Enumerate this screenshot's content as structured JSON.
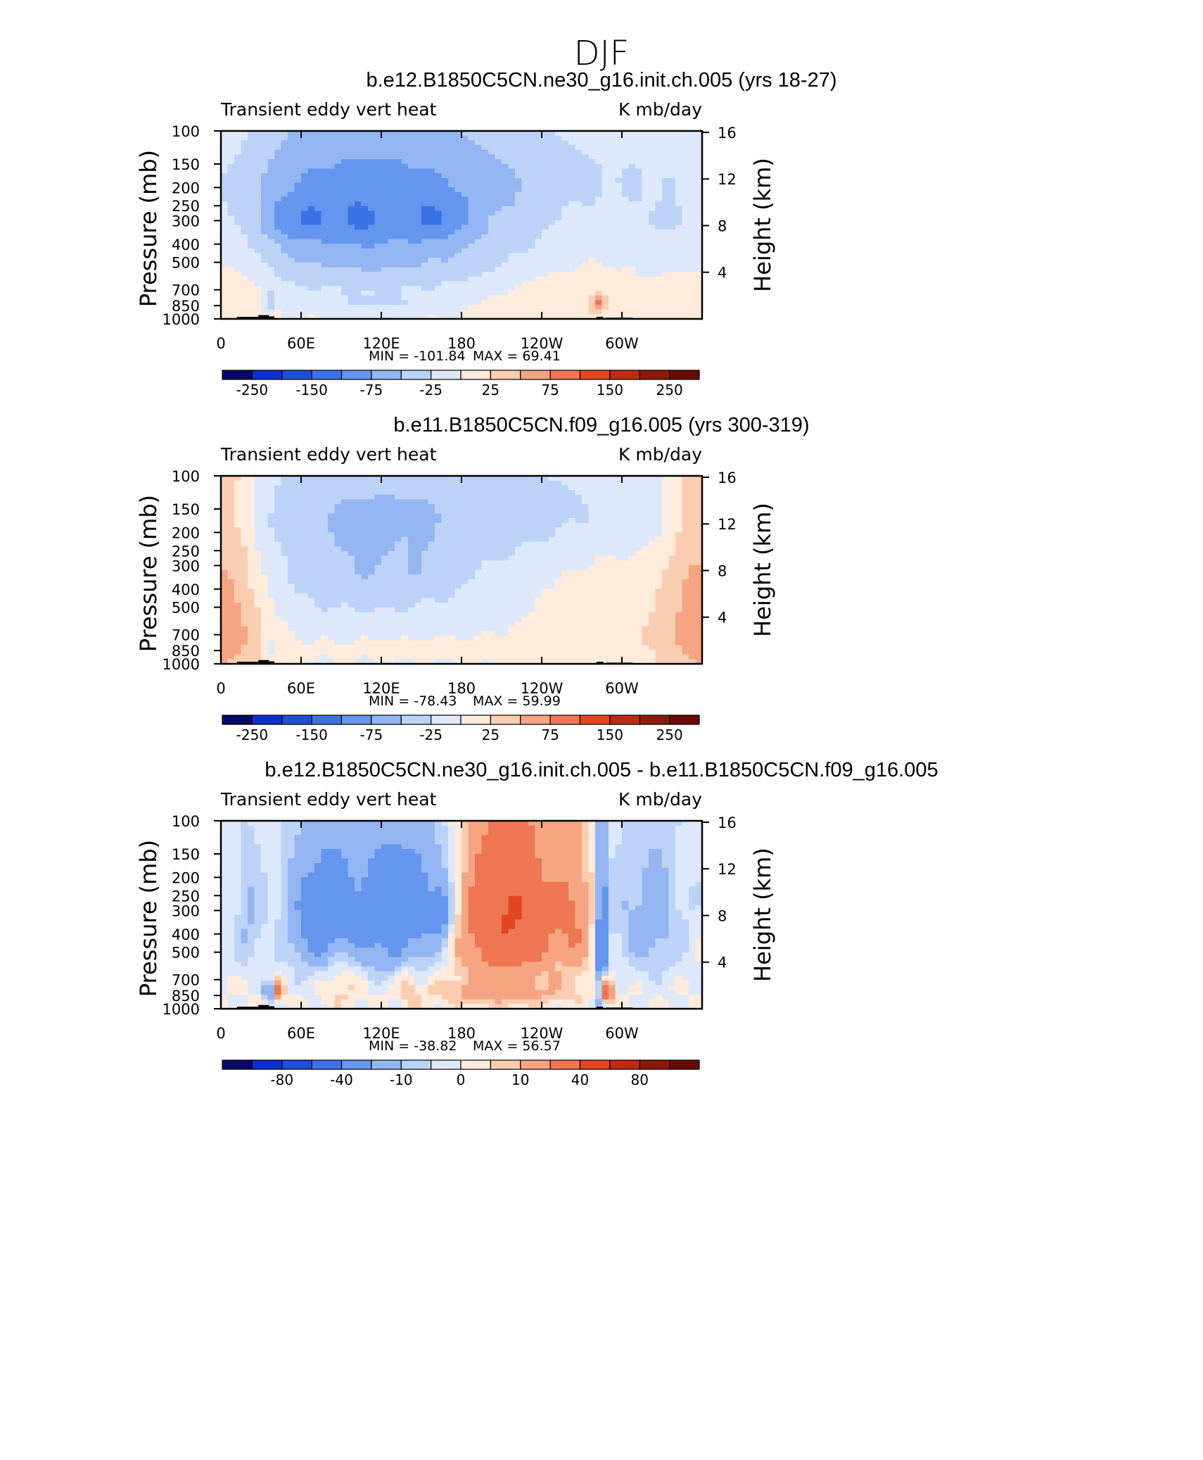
{
  "figure_title": "DJF",
  "colors": {
    "palette": [
      "#08086b",
      "#0c2fcf",
      "#1e4fd9",
      "#3b72e6",
      "#6496ee",
      "#93b6f3",
      "#bcd3f7",
      "#dde9fb",
      "#feebdb",
      "#fbcdb0",
      "#f5a582",
      "#ef7652",
      "#e5451f",
      "#c02a12",
      "#8c1a0a",
      "#6b0a05"
    ],
    "topography": "#000000"
  },
  "chart_data": [
    {
      "type": "heatmap",
      "title": "b.e12.B1850C5CN.ne30_g16.init.ch.005 (yrs 18-27)",
      "left_label": "Transient eddy vert heat",
      "right_label": "K mb/day",
      "ylabel": "Pressure (mb)",
      "y2label": "Height (km)",
      "y_ticks": [
        "100",
        "150",
        "200",
        "250",
        "300",
        "400",
        "500",
        "700",
        "850",
        "1000"
      ],
      "y_tick_values": [
        100,
        150,
        200,
        250,
        300,
        400,
        500,
        700,
        850,
        1000
      ],
      "y2_ticks": [
        "16",
        "12",
        "8",
        "4"
      ],
      "y2_tick_values": [
        16,
        12,
        8,
        4
      ],
      "x_ticks": [
        "0",
        "60E",
        "120E",
        "180",
        "120W",
        "60W"
      ],
      "x_tick_values": [
        0,
        60,
        120,
        180,
        240,
        300
      ],
      "xlim": [
        0,
        360
      ],
      "ylim": [
        1000,
        100
      ],
      "min_label": "MIN = -101.84",
      "max_label": "MAX = 69.41",
      "min": -101.84,
      "max": 69.41,
      "colorbar_labels": [
        "-250",
        "-150",
        "-75",
        "-25",
        "25",
        "75",
        "150",
        "250"
      ],
      "colorbar_bounds": [
        -300,
        -250,
        -200,
        -150,
        -100,
        -75,
        -50,
        -25,
        0,
        25,
        50,
        75,
        100,
        150,
        200,
        250,
        300
      ]
    },
    {
      "type": "heatmap",
      "title": "b.e11.B1850C5CN.f09_g16.005 (yrs 300-319)",
      "left_label": "Transient eddy vert heat",
      "right_label": "K mb/day",
      "ylabel": "Pressure (mb)",
      "y2label": "Height (km)",
      "y_ticks": [
        "100",
        "150",
        "200",
        "250",
        "300",
        "400",
        "500",
        "700",
        "850",
        "1000"
      ],
      "y_tick_values": [
        100,
        150,
        200,
        250,
        300,
        400,
        500,
        700,
        850,
        1000
      ],
      "y2_ticks": [
        "16",
        "12",
        "8",
        "4"
      ],
      "y2_tick_values": [
        16,
        12,
        8,
        4
      ],
      "x_ticks": [
        "0",
        "60E",
        "120E",
        "180",
        "120W",
        "60W"
      ],
      "x_tick_values": [
        0,
        60,
        120,
        180,
        240,
        300
      ],
      "xlim": [
        0,
        360
      ],
      "ylim": [
        1000,
        100
      ],
      "min_label": "MIN = -78.43",
      "max_label": "MAX = 59.99",
      "min": -78.43,
      "max": 59.99,
      "colorbar_labels": [
        "-250",
        "-150",
        "-75",
        "-25",
        "25",
        "75",
        "150",
        "250"
      ],
      "colorbar_bounds": [
        -300,
        -250,
        -200,
        -150,
        -100,
        -75,
        -50,
        -25,
        0,
        25,
        50,
        75,
        100,
        150,
        200,
        250,
        300
      ]
    },
    {
      "type": "heatmap",
      "title": "b.e12.B1850C5CN.ne30_g16.init.ch.005 - b.e11.B1850C5CN.f09_g16.005",
      "left_label": "Transient eddy vert heat",
      "right_label": "K mb/day",
      "ylabel": "Pressure (mb)",
      "y2label": "Height (km)",
      "y_ticks": [
        "100",
        "150",
        "200",
        "250",
        "300",
        "400",
        "500",
        "700",
        "850",
        "1000"
      ],
      "y_tick_values": [
        100,
        150,
        200,
        250,
        300,
        400,
        500,
        700,
        850,
        1000
      ],
      "y2_ticks": [
        "16",
        "12",
        "8",
        "4"
      ],
      "y2_tick_values": [
        16,
        12,
        8,
        4
      ],
      "x_ticks": [
        "0",
        "60E",
        "120E",
        "180",
        "120W",
        "60W"
      ],
      "x_tick_values": [
        0,
        60,
        120,
        180,
        240,
        300
      ],
      "xlim": [
        0,
        360
      ],
      "ylim": [
        1000,
        100
      ],
      "min_label": "MIN = -38.82",
      "max_label": "MAX = 56.57",
      "min": -38.82,
      "max": 56.57,
      "colorbar_labels": [
        "-80",
        "-40",
        "-10",
        "0",
        "10",
        "40",
        "80"
      ],
      "colorbar_bounds": [
        -120,
        -100,
        -80,
        -60,
        -40,
        -20,
        -10,
        -5,
        0,
        5,
        10,
        20,
        40,
        60,
        80,
        100,
        120
      ]
    }
  ]
}
